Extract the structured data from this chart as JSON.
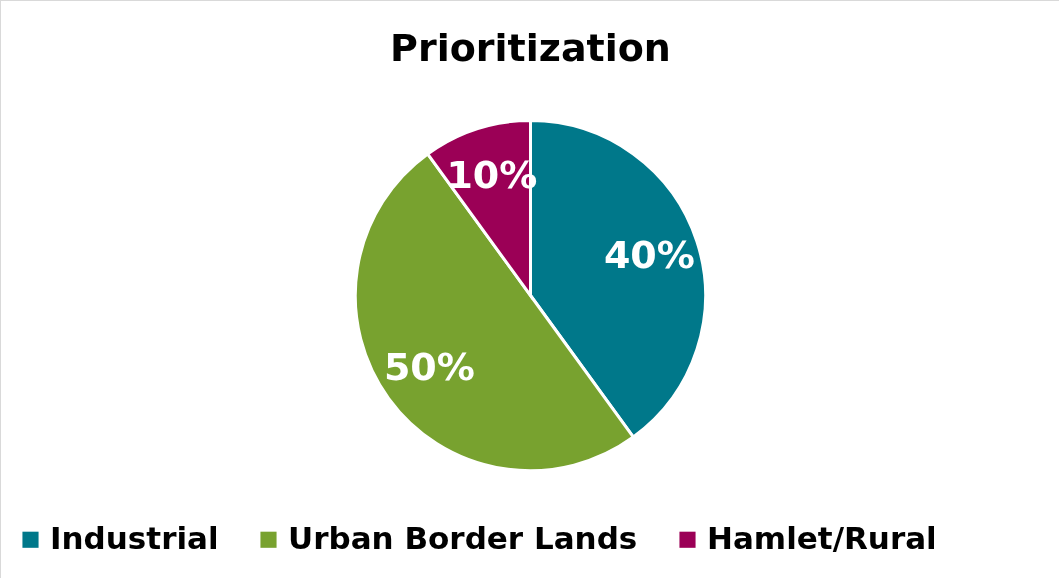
{
  "chart_data": {
    "type": "pie",
    "title": "Prioritization",
    "categories": [
      "Industrial",
      "Urban Border Lands",
      "Hamlet/Rural"
    ],
    "values": [
      40,
      50,
      10
    ],
    "value_labels": [
      "40%",
      "50%",
      "10%"
    ],
    "colors": [
      "#00788a",
      "#78a22f",
      "#9b0056"
    ],
    "legend": "bottom"
  }
}
